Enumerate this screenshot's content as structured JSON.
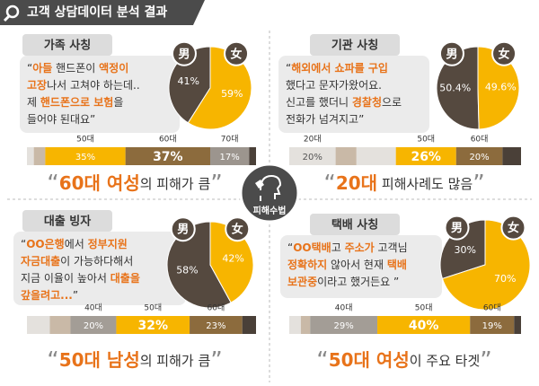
{
  "header": {
    "title": "고객 상담데이터 분석 결과"
  },
  "center": {
    "label": "피해수법"
  },
  "panels": [
    {
      "title": "가족 사칭",
      "quote": [
        [
          {
            "text": "“"
          },
          {
            "text": "아들",
            "highlight": true
          },
          {
            "text": " 핸드폰이 "
          },
          {
            "text": "액정이",
            "highlight": true
          }
        ],
        [
          {
            "text": "고장",
            "highlight": true
          },
          {
            "text": "나서 고쳐야 하는데.."
          }
        ],
        [
          {
            "text": "제 "
          },
          {
            "text": "핸드폰으로 보험",
            "highlight": true
          },
          {
            "text": "을"
          }
        ],
        [
          {
            "text": "들어야 된대요”"
          }
        ]
      ],
      "pie": {
        "type": "pie",
        "categories": [
          "男",
          "女"
        ],
        "values": [
          41,
          59
        ],
        "value_labels": [
          "41%",
          "59%"
        ],
        "colors": [
          "#55493f",
          "#f7b500"
        ]
      },
      "bar": {
        "type": "stacked-bar",
        "categories": [
          null,
          null,
          "50대",
          "60대",
          "70대",
          null
        ],
        "values": [
          3,
          5,
          35,
          37,
          17,
          3
        ],
        "value_labels": [
          null,
          null,
          "35%",
          "37%",
          "17%",
          null
        ],
        "colors": [
          "#e4e1dd",
          "#c9b9a7",
          "#f7b500",
          "#8c6b3d",
          "#9c958e",
          "#4a4038"
        ]
      },
      "caption": [
        {
          "text": "“"
        },
        {
          "text": "60대 여성",
          "highlight": true
        },
        {
          "text": "의 피해가 큼"
        },
        {
          "text": "”"
        }
      ]
    },
    {
      "title": "기관 사칭",
      "quote": [
        [
          {
            "text": "“"
          },
          {
            "text": "해외에서 쇼파를 구입",
            "highlight": true
          }
        ],
        [
          {
            "text": "했다고 문자가왔어요."
          }
        ],
        [
          {
            "text": "신고를 했더니 "
          },
          {
            "text": "경찰청",
            "highlight": true
          },
          {
            "text": "으로"
          }
        ],
        [
          {
            "text": "전화가 넘겨지고”"
          }
        ]
      ],
      "pie": {
        "type": "pie",
        "categories": [
          "男",
          "女"
        ],
        "values": [
          50.4,
          49.6
        ],
        "value_labels": [
          "50.4%",
          "49.6%"
        ],
        "colors": [
          "#55493f",
          "#f7b500"
        ]
      },
      "bar": {
        "type": "stacked-bar",
        "categories": [
          "20대",
          null,
          null,
          "50대",
          "60대",
          null
        ],
        "values": [
          20,
          9,
          17,
          26,
          20,
          8
        ],
        "value_labels": [
          "20%",
          null,
          null,
          "26%",
          "20%",
          null
        ],
        "colors": [
          "#e4e1dd",
          "#c9b9a7",
          "#e4e1dd",
          "#f7b500",
          "#8c6b3d",
          "#4a4038"
        ]
      },
      "caption": [
        {
          "text": "“"
        },
        {
          "text": "20대",
          "highlight": true
        },
        {
          "text": " 피해사례도 많음"
        },
        {
          "text": "”"
        }
      ]
    },
    {
      "title": "대출 빙자",
      "quote": [
        [
          {
            "text": "“"
          },
          {
            "text": "OO은행",
            "highlight": true
          },
          {
            "text": "에서 "
          },
          {
            "text": "정부지원",
            "highlight": true
          }
        ],
        [
          {
            "text": "자금대출",
            "highlight": true
          },
          {
            "text": "이 가능하다해서"
          }
        ],
        [
          {
            "text": "지금 이율이 높아서 "
          },
          {
            "text": "대출을",
            "highlight": true
          }
        ],
        [
          {
            "text": "갚을려고...",
            "highlight": true
          },
          {
            "text": "”"
          }
        ]
      ],
      "pie": {
        "type": "pie",
        "categories": [
          "男",
          "女"
        ],
        "values": [
          58,
          42
        ],
        "value_labels": [
          "58%",
          "42%"
        ],
        "colors": [
          "#55493f",
          "#f7b500"
        ]
      },
      "bar": {
        "type": "stacked-bar",
        "categories": [
          null,
          null,
          "40대",
          "50대",
          "60대",
          null
        ],
        "values": [
          10,
          9,
          20,
          32,
          23,
          6
        ],
        "value_labels": [
          null,
          null,
          "20%",
          "32%",
          "23%",
          null
        ],
        "colors": [
          "#e4e1dd",
          "#c9b9a7",
          "#a39d96",
          "#f7b500",
          "#8c6b3d",
          "#4a4038"
        ]
      },
      "caption": [
        {
          "text": "“"
        },
        {
          "text": "50대 남성",
          "highlight": true
        },
        {
          "text": "의 피해가 큼"
        },
        {
          "text": "”"
        }
      ]
    },
    {
      "title": "택배 사칭",
      "quote": [
        [
          {
            "text": "“"
          },
          {
            "text": "OO택배",
            "highlight": true
          },
          {
            "text": "고 "
          },
          {
            "text": "주소가",
            "highlight": true
          },
          {
            "text": " 고객님"
          }
        ],
        [
          {
            "text": "정확하지",
            "highlight": true
          },
          {
            "text": " 않아서 현재 "
          },
          {
            "text": "택배",
            "highlight": true
          }
        ],
        [
          {
            "text": "보관중",
            "highlight": true
          },
          {
            "text": "이라고 했거든요 ”"
          }
        ]
      ],
      "pie": {
        "type": "pie",
        "categories": [
          "男",
          "女"
        ],
        "values": [
          30,
          70
        ],
        "value_labels": [
          "30%",
          "70%"
        ],
        "colors": [
          "#55493f",
          "#f7b500"
        ]
      },
      "bar": {
        "type": "stacked-bar",
        "categories": [
          null,
          null,
          "40대",
          "50대",
          "60대",
          null
        ],
        "values": [
          5,
          4,
          29,
          40,
          19,
          3
        ],
        "value_labels": [
          null,
          null,
          "29%",
          "40%",
          "19%",
          null
        ],
        "colors": [
          "#e4e1dd",
          "#c9b9a7",
          "#a39d96",
          "#f7b500",
          "#8c6b3d",
          "#4a4038"
        ]
      },
      "caption": [
        {
          "text": "“"
        },
        {
          "text": "50대 여성",
          "highlight": true
        },
        {
          "text": "이 주요 타겟"
        },
        {
          "text": "”"
        }
      ]
    }
  ]
}
